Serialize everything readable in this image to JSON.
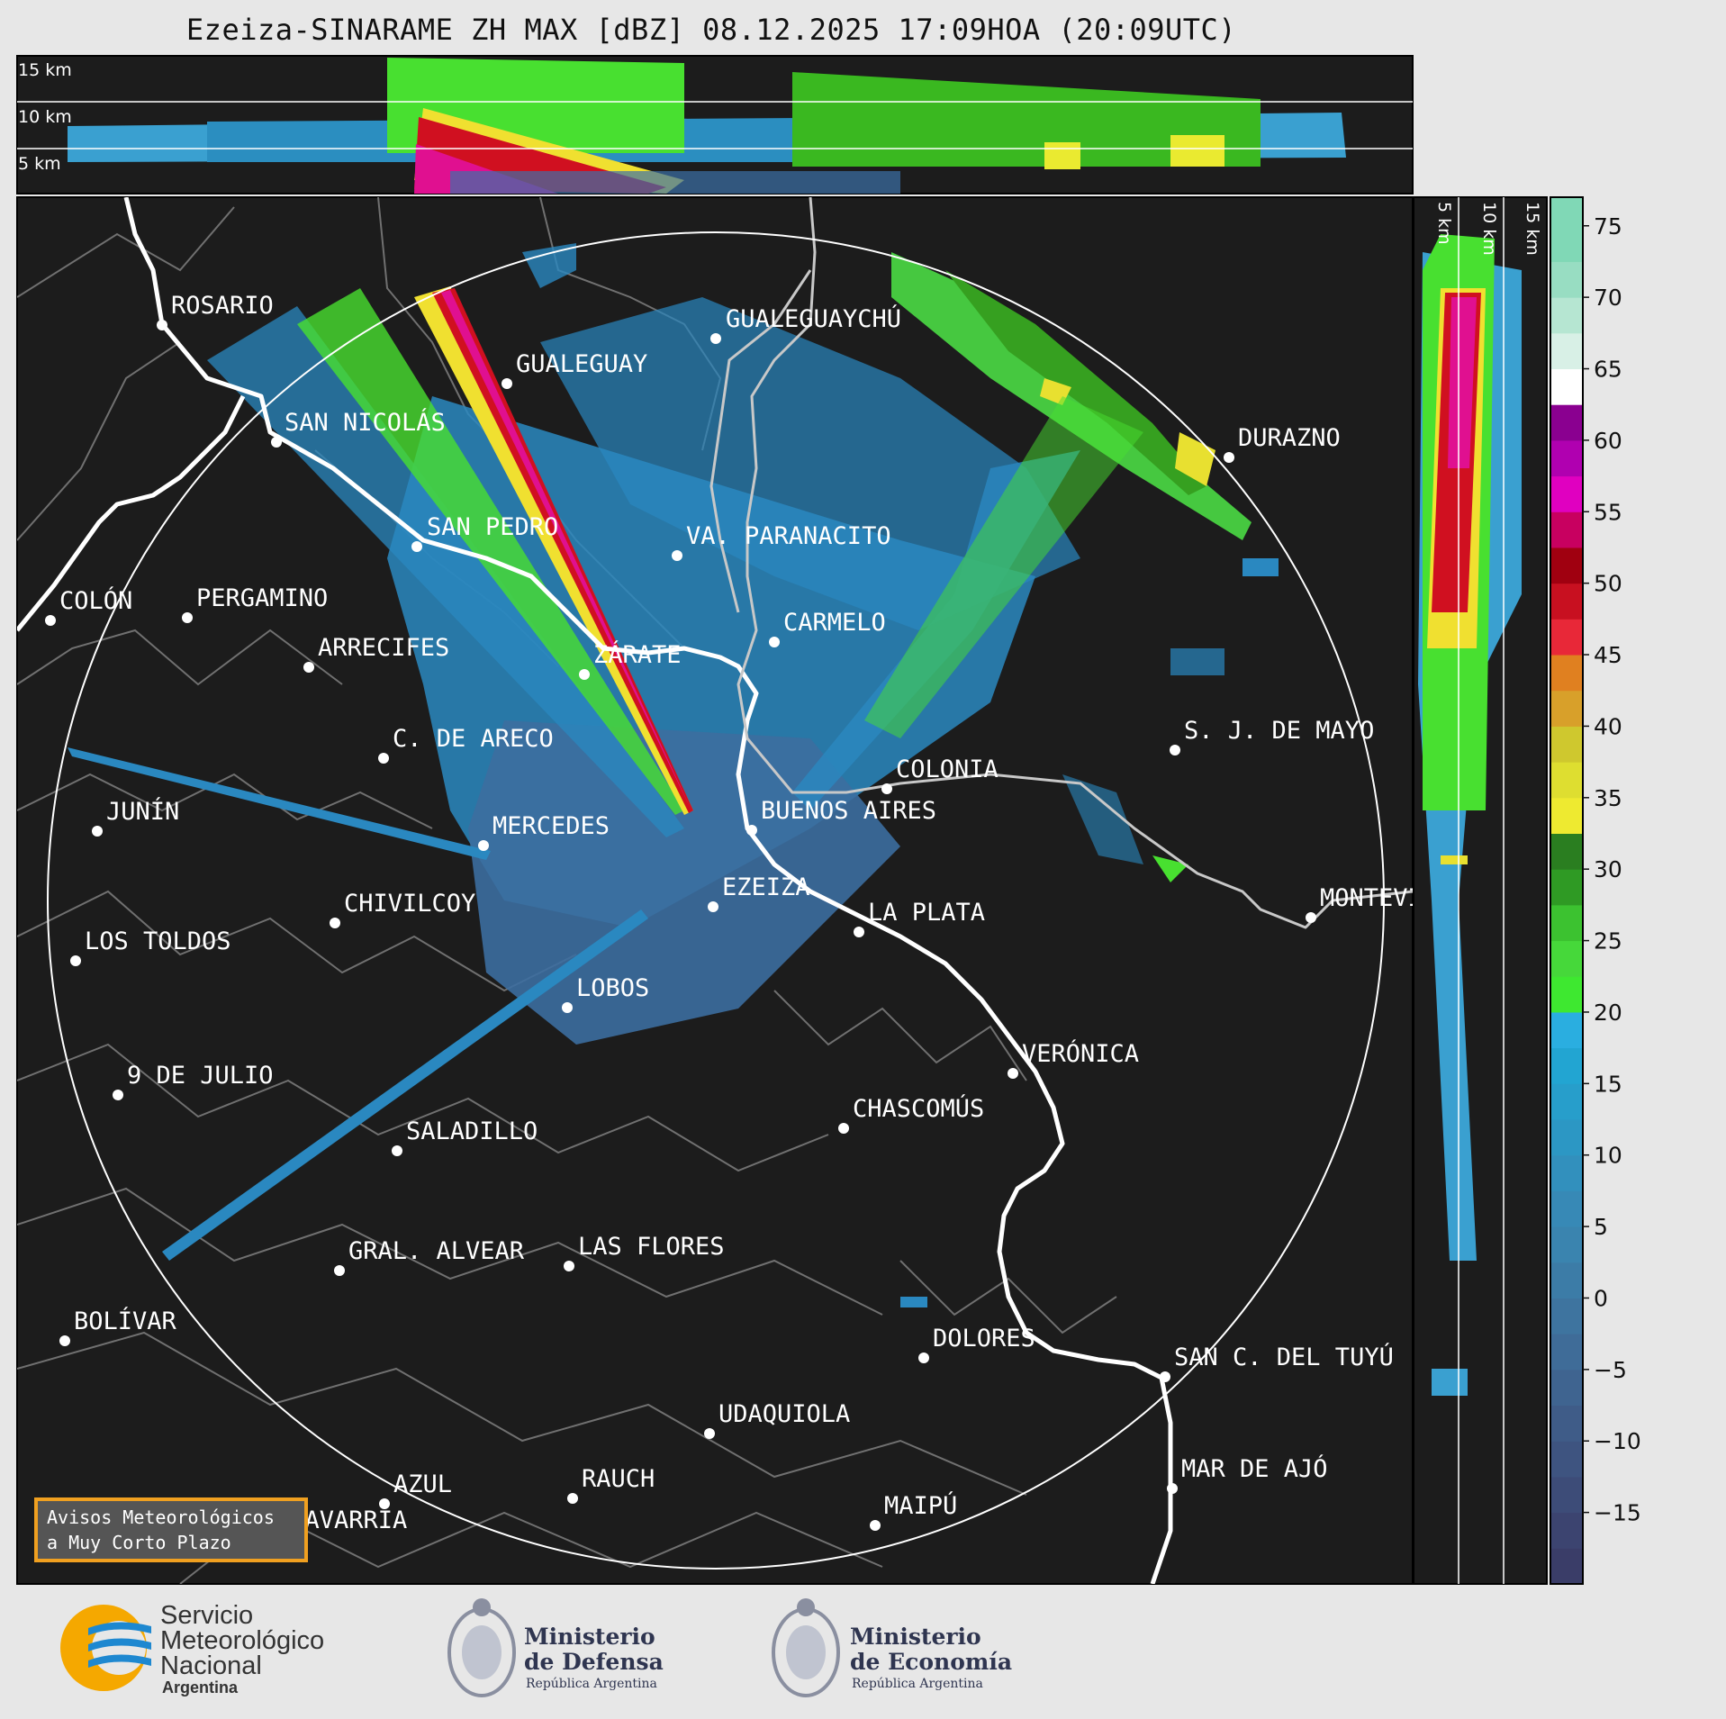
{
  "title": "Ezeiza-SINARAME ZH MAX [dBZ] 08.12.2025 17:09HOA (20:09UTC)",
  "height_labels": {
    "top": [
      "15 km",
      "10 km",
      "5 km"
    ],
    "side": [
      "5 km",
      "10 km",
      "15 km"
    ]
  },
  "colorbar": {
    "ticks": [
      "75",
      "70",
      "65",
      "60",
      "55",
      "50",
      "45",
      "40",
      "35",
      "30",
      "25",
      "20",
      "15",
      "10",
      "5",
      "0",
      "−5",
      "−10",
      "−15"
    ],
    "range": [
      -20,
      77
    ]
  },
  "cities": [
    {
      "name": "ROSARIO"
    },
    {
      "name": "GUALEGUAYCHÚ"
    },
    {
      "name": "GUALEGUAY"
    },
    {
      "name": "SAN NICOLÁS"
    },
    {
      "name": "DURAZNO"
    },
    {
      "name": "SAN PEDRO"
    },
    {
      "name": "VA. PARANACITO"
    },
    {
      "name": "COLÓN"
    },
    {
      "name": "PERGAMINO"
    },
    {
      "name": "CARMELO"
    },
    {
      "name": "ARRECIFES"
    },
    {
      "name": "ZÁRATE"
    },
    {
      "name": "S. J. DE MAYO"
    },
    {
      "name": "C. DE ARECO"
    },
    {
      "name": "COLONIA"
    },
    {
      "name": "JUNÍN"
    },
    {
      "name": "BUENOS AIRES"
    },
    {
      "name": "MERCEDES"
    },
    {
      "name": "EZEIZA"
    },
    {
      "name": "MONTEVIDEO"
    },
    {
      "name": "CHIVILCOY"
    },
    {
      "name": "LA PLATA"
    },
    {
      "name": "LOS TOLDOS"
    },
    {
      "name": "LOBOS"
    },
    {
      "name": "VERÓNICA"
    },
    {
      "name": "9 DE JULIO"
    },
    {
      "name": "CHASCOMÚS"
    },
    {
      "name": "SALADILLO"
    },
    {
      "name": "GRAL. ALVEAR"
    },
    {
      "name": "LAS FLORES"
    },
    {
      "name": "BOLÍVAR"
    },
    {
      "name": "DOLORES"
    },
    {
      "name": "SAN C. DEL TUYÚ"
    },
    {
      "name": "UDAQUIOLA"
    },
    {
      "name": "RAUCH"
    },
    {
      "name": "AZUL"
    },
    {
      "name": "MAR DE AJÓ"
    },
    {
      "name": "OLAVARRÍA"
    },
    {
      "name": "MAIPÚ"
    }
  ],
  "notice": {
    "line1": "Avisos Meteorológicos",
    "line2": "a Muy Corto Plazo"
  },
  "logos": {
    "smn": {
      "line1": "Servicio",
      "line2": "Meteorológico",
      "line3": "Nacional",
      "country": "Argentina"
    },
    "defensa": {
      "line1": "Ministerio",
      "line2": "de Defensa",
      "sub": "República Argentina"
    },
    "economia": {
      "line1": "Ministerio",
      "line2": "de Economía",
      "sub": "República Argentina"
    }
  }
}
